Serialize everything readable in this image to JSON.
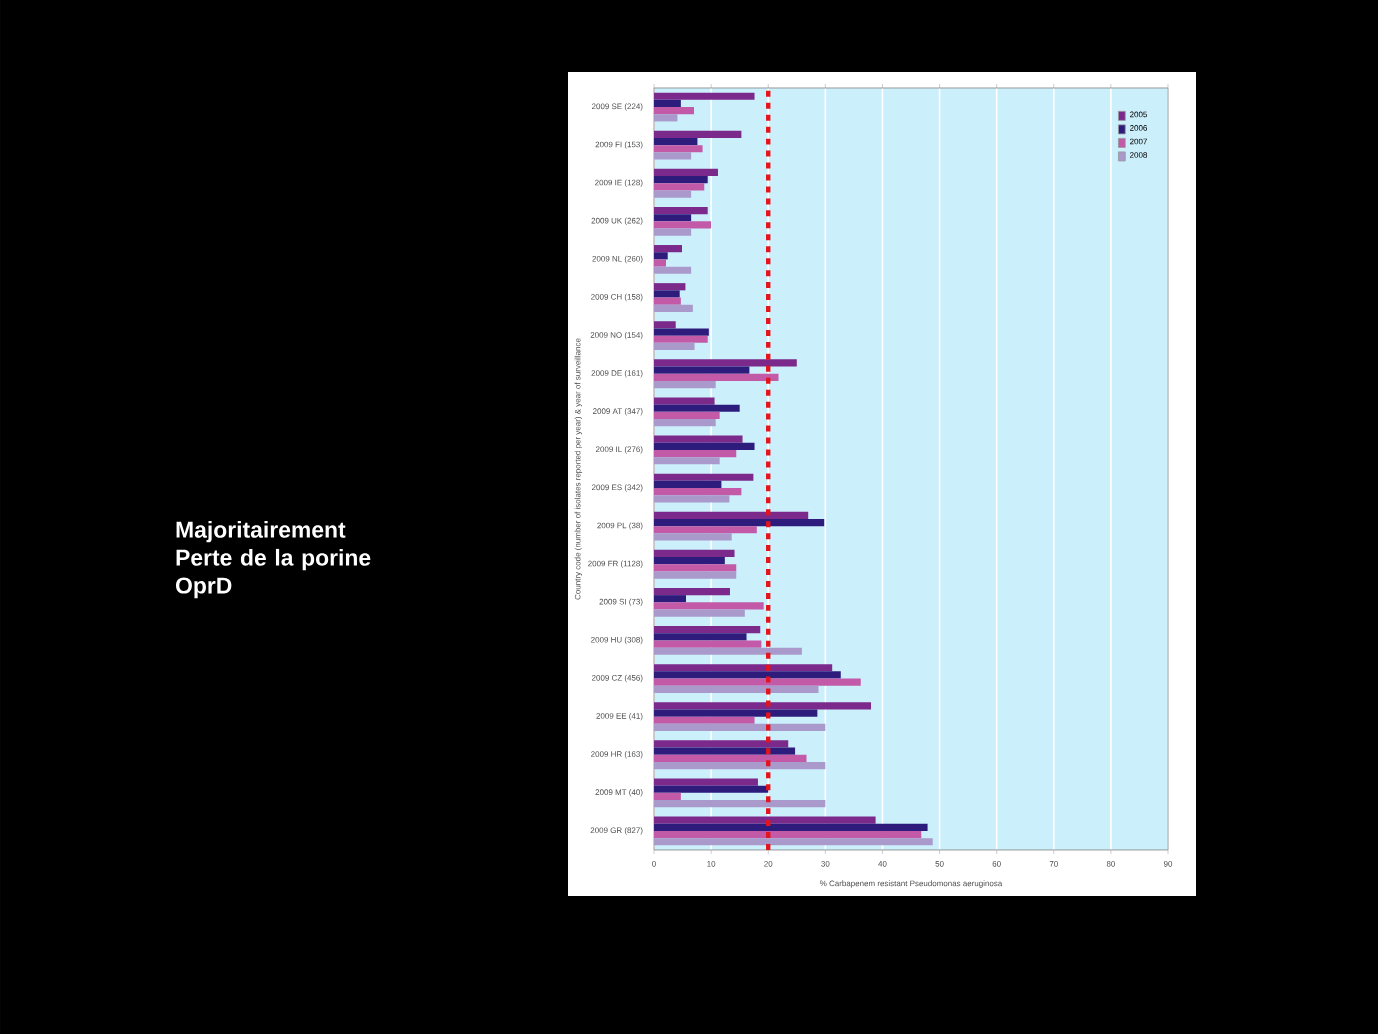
{
  "chart_data": {
    "type": "bar",
    "orientation": "horizontal",
    "xlabel": "% Carbapenem resistant Pseudomonas aeruginosa",
    "ylabel": "Country code (number of isolates reported per year) & year of surveillance",
    "categories": [
      "2009 SE (224)",
      "2009 FI (153)",
      "2009 IE (128)",
      "2009 UK (262)",
      "2009 NL (260)",
      "2009 CH (158)",
      "2009 NO (154)",
      "2009 DE (161)",
      "2009 AT (347)",
      "2009 IL (276)",
      "2009 ES (342)",
      "2009 PL (38)",
      "2009 FR (1128)",
      "2009 SI (73)",
      "2009 HU (308)",
      "2009 CZ (456)",
      "2009 EE (41)",
      "2009 HR (163)",
      "2009 MT (40)",
      "2009 GR (827)"
    ],
    "series": [
      {
        "name": "2005",
        "color": "#7b2a8c",
        "values": [
          17.6,
          15.3,
          11.2,
          9.4,
          4.9,
          5.5,
          3.8,
          25,
          10.6,
          15.5,
          17.4,
          27,
          14.1,
          13.3,
          18.6,
          31.2,
          38,
          23.5,
          18.2,
          38.8
        ]
      },
      {
        "name": "2006",
        "color": "#2e1c7c",
        "values": [
          4.7,
          7.6,
          9.4,
          6.5,
          2.4,
          4.5,
          9.6,
          16.7,
          15,
          17.6,
          11.8,
          29.8,
          12.4,
          5.6,
          16.2,
          32.7,
          28.6,
          24.7,
          20,
          47.9
        ]
      },
      {
        "name": "2007",
        "color": "#c25aa8",
        "values": [
          7,
          8.5,
          8.8,
          10,
          2.1,
          4.7,
          9.4,
          21.8,
          11.5,
          14.4,
          15.3,
          18,
          14.4,
          19.2,
          18.8,
          36.2,
          17.6,
          26.7,
          4.7,
          46.8
        ]
      },
      {
        "name": "2008",
        "color": "#a99acb",
        "values": [
          4.1,
          6.5,
          6.5,
          6.5,
          6.5,
          6.8,
          7.1,
          10.8,
          10.8,
          11.5,
          13.2,
          13.6,
          14.4,
          15.9,
          25.9,
          28.8,
          30,
          30,
          30,
          48.8
        ]
      }
    ],
    "xlim": [
      0,
      90
    ],
    "xticks": [
      0,
      10,
      20,
      30,
      40,
      50,
      60,
      70,
      80,
      90
    ],
    "grid": "x",
    "legend": "top right",
    "ref_lines": [
      {
        "axis": "x",
        "value": 20,
        "color": "#e3141c",
        "line_style": "dashed"
      }
    ],
    "annotations": [
      "Majoritairement Perte de la porine OprD"
    ]
  }
}
